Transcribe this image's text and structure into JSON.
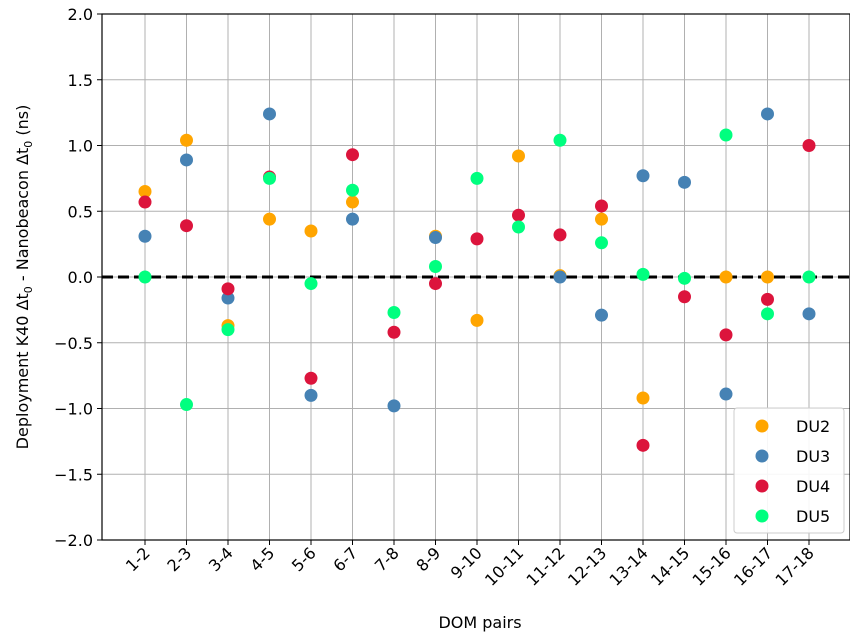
{
  "chart_data": {
    "type": "scatter",
    "title": "",
    "xlabel": "DOM pairs",
    "ylabel_parts": {
      "a": "Deployment K40 Δt",
      "sub1": "0",
      "b": " - Nanobeacon Δt",
      "sub2": "0",
      "c": " (ns)"
    },
    "categories": [
      "1-2",
      "2-3",
      "3-4",
      "4-5",
      "5-6",
      "6-7",
      "7-8",
      "8-9",
      "9-10",
      "10-11",
      "11-12",
      "12-13",
      "13-14",
      "14-15",
      "15-16",
      "16-17",
      "17-18"
    ],
    "ylim": [
      -2.0,
      2.0
    ],
    "yticks": [
      "−2.0",
      "−1.5",
      "−1.0",
      "−0.5",
      "0.0",
      "0.5",
      "1.0",
      "1.5",
      "2.0"
    ],
    "ytick_values": [
      -2.0,
      -1.5,
      -1.0,
      -0.5,
      0.0,
      0.5,
      1.0,
      1.5,
      2.0
    ],
    "grid": true,
    "reference_line": {
      "y": 0.0,
      "style": "dashed",
      "color": "#000000"
    },
    "legend_position": "bottom-right",
    "series": [
      {
        "name": "DU2",
        "color": "#FFA500",
        "values": [
          0.65,
          1.04,
          -0.37,
          0.44,
          0.35,
          0.57,
          null,
          0.31,
          -0.33,
          0.92,
          0.01,
          0.44,
          -0.92,
          null,
          0.0,
          0.0,
          null
        ]
      },
      {
        "name": "DU3",
        "color": "#4682B4",
        "values": [
          0.31,
          0.89,
          -0.16,
          1.24,
          -0.9,
          0.44,
          -0.98,
          0.3,
          null,
          null,
          0.0,
          -0.29,
          0.77,
          0.72,
          -0.89,
          1.24,
          -0.28
        ]
      },
      {
        "name": "DU4",
        "color": "#DC143C",
        "values": [
          0.57,
          0.39,
          -0.09,
          0.76,
          -0.77,
          0.93,
          -0.42,
          -0.05,
          0.29,
          0.47,
          0.32,
          0.54,
          -1.28,
          -0.15,
          -0.44,
          -0.17,
          1.0
        ]
      },
      {
        "name": "DU5",
        "color": "#00FF7F",
        "values": [
          0.0,
          -0.97,
          -0.4,
          0.75,
          -0.05,
          0.66,
          -0.27,
          0.08,
          0.75,
          0.38,
          1.04,
          0.26,
          0.02,
          -0.01,
          1.08,
          -0.28,
          0.0
        ]
      }
    ]
  }
}
